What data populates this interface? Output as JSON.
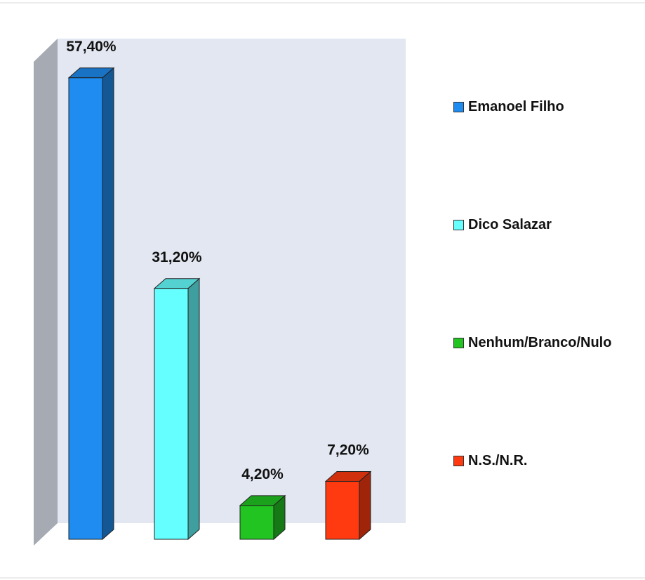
{
  "chart_data": {
    "type": "bar",
    "title": "",
    "xlabel": "",
    "ylabel": "",
    "categories": [
      "Emanoel Filho",
      "Dico Salazar",
      "Nenhum/Branco/Nulo",
      "N.S./N.R."
    ],
    "values": [
      57.4,
      31.2,
      4.2,
      7.2
    ],
    "value_labels": [
      "57,40%",
      "31,20%",
      "4,20%",
      "7,20%"
    ],
    "colors": [
      "#1e8cf0",
      "#66ffff",
      "#22c422",
      "#ff3a10"
    ],
    "ylim": [
      0,
      60
    ],
    "grid": false,
    "legend_position": "right",
    "style": "3d-column"
  },
  "legend": {
    "items": [
      {
        "label": "Emanoel Filho",
        "color": "#1e8cf0"
      },
      {
        "label": "Dico Salazar",
        "color": "#66ffff"
      },
      {
        "label": "Nenhum/Branco/Nulo",
        "color": "#22c422"
      },
      {
        "label": "N.S./N.R.",
        "color": "#ff3a10"
      }
    ]
  }
}
